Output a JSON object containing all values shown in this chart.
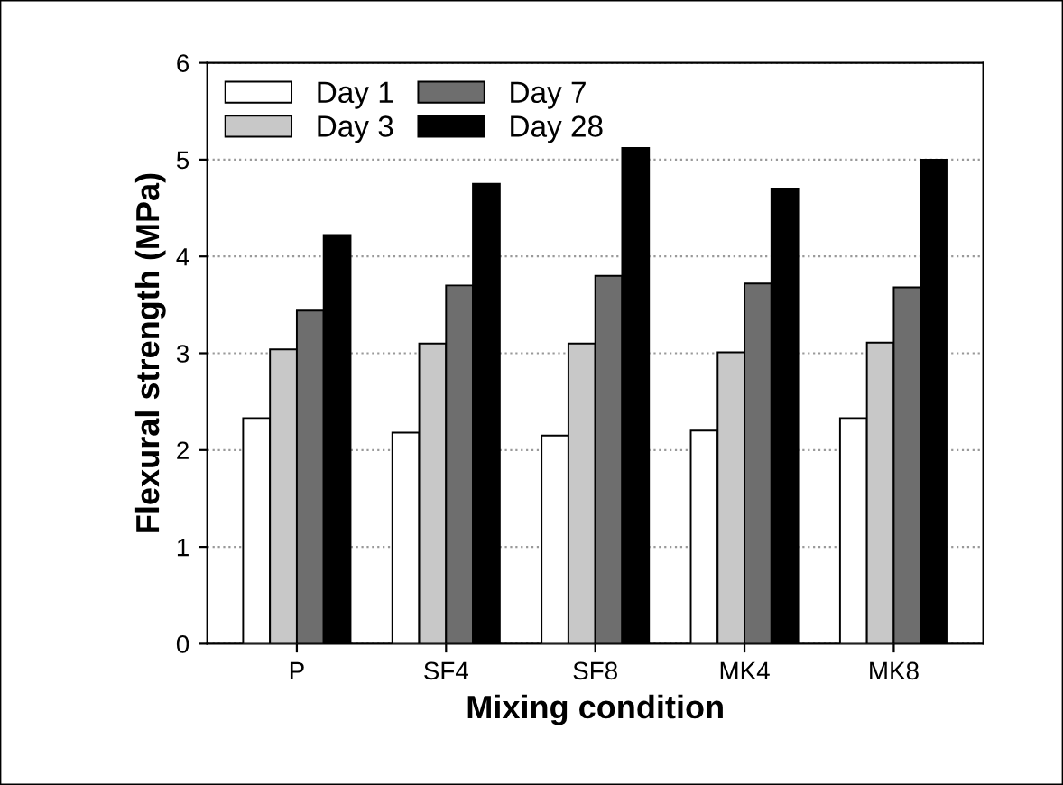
{
  "chart_data": {
    "type": "bar",
    "xlabel": "Mixing condition",
    "ylabel": "Flexural strength (MPa)",
    "categories": [
      "P",
      "SF4",
      "SF8",
      "MK4",
      "MK8"
    ],
    "series": [
      {
        "name": "Day 1",
        "color": "#ffffff",
        "values": [
          2.33,
          2.18,
          2.15,
          2.2,
          2.33
        ]
      },
      {
        "name": "Day 3",
        "color": "#c8c8c8",
        "values": [
          3.04,
          3.1,
          3.1,
          3.01,
          3.11
        ]
      },
      {
        "name": "Day 7",
        "color": "#6e6e6e",
        "values": [
          3.44,
          3.7,
          3.8,
          3.72,
          3.68
        ]
      },
      {
        "name": "Day 28",
        "color": "#000000",
        "values": [
          4.22,
          4.75,
          5.12,
          4.7,
          5.0
        ]
      }
    ],
    "ylim": [
      0,
      6
    ],
    "yticks": [
      0,
      1,
      2,
      3,
      4,
      5,
      6
    ],
    "grid": "y",
    "legend": "top left"
  }
}
